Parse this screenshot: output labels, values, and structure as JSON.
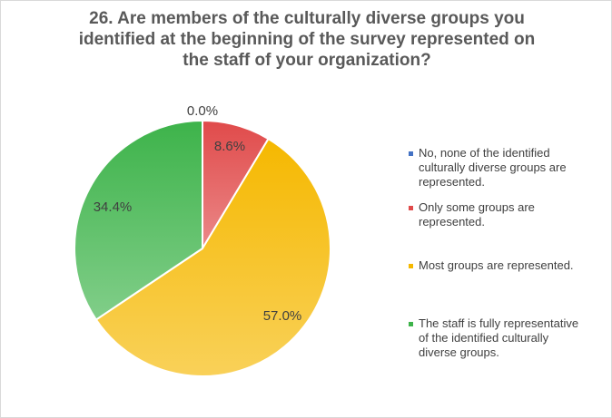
{
  "chart_data": {
    "type": "pie",
    "title_lines": [
      "26. Are members of the culturally diverse groups you",
      "identified at the beginning of the survey represented on",
      "the staff of your organization?"
    ],
    "slices": [
      {
        "label_lines": [
          "No, none of the identified",
          "culturally diverse groups are",
          "represented."
        ],
        "value": 0.0,
        "value_label": "0.0%",
        "color": "#4472c4"
      },
      {
        "label_lines": [
          "Only some groups are",
          "represented."
        ],
        "value": 8.6,
        "value_label": "8.6%",
        "color": "#e04a4a"
      },
      {
        "label_lines": [
          "Most groups are represented."
        ],
        "value": 57.0,
        "value_label": "57.0%",
        "color": "#f5b800"
      },
      {
        "label_lines": [
          "The staff is fully representative",
          "of the identified culturally",
          "diverse groups."
        ],
        "value": 34.4,
        "value_label": "34.4%",
        "color": "#3db34a"
      }
    ],
    "start_angle_deg": 0,
    "direction": "clockwise",
    "legend_position": "right"
  }
}
